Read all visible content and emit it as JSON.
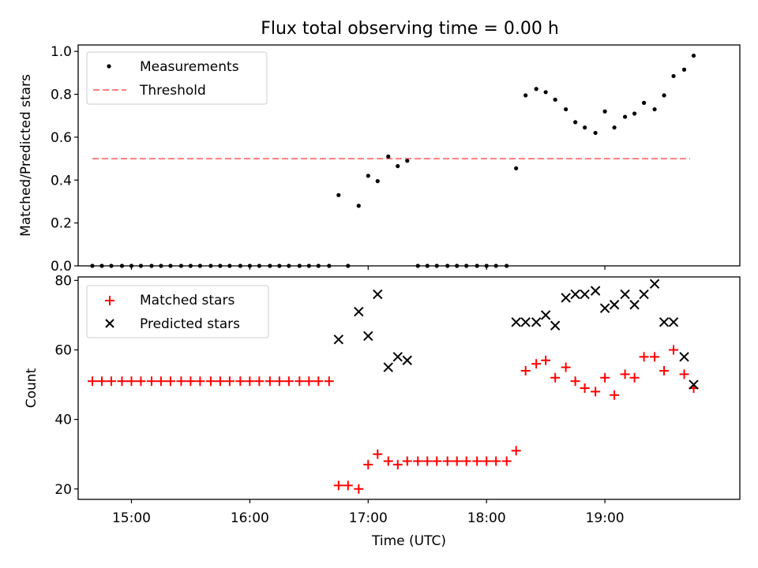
{
  "title": "Flux total observing time = 0.00 h",
  "colors": {
    "measurement": "#000000",
    "threshold": "#ff7f7f",
    "matched": "#ff0000",
    "predicted": "#000000"
  },
  "chart_data": [
    {
      "type": "scatter",
      "panel": "top",
      "ylabel": "Matched/Predicted stars",
      "xlim": [
        14.55,
        20.14
      ],
      "ylim": [
        0,
        1.03
      ],
      "yticks": [
        "0.0",
        "0.2",
        "0.4",
        "0.6",
        "0.8",
        "1.0"
      ],
      "ytick_values": [
        0,
        0.2,
        0.4,
        0.6,
        0.8,
        1.0
      ],
      "xtick_values": [
        15,
        16,
        17,
        18,
        19
      ],
      "threshold": {
        "name": "Threshold",
        "value": 0.5,
        "x_range": [
          14.67,
          19.72
        ]
      },
      "legend": [
        "Measurements",
        "Threshold"
      ],
      "series": [
        {
          "name": "Measurements",
          "x": [
            14.67,
            14.75,
            14.83,
            14.92,
            15.0,
            15.08,
            15.17,
            15.25,
            15.33,
            15.42,
            15.5,
            15.58,
            15.67,
            15.75,
            15.83,
            15.92,
            16.0,
            16.08,
            16.17,
            16.25,
            16.33,
            16.42,
            16.5,
            16.58,
            16.67,
            16.75,
            16.83,
            16.92,
            17.0,
            17.08,
            17.17,
            17.25,
            17.33,
            17.42,
            17.5,
            17.58,
            17.67,
            17.75,
            17.83,
            17.92,
            18.0,
            18.08,
            18.17,
            18.25,
            18.33,
            18.42,
            18.5,
            18.58,
            18.67,
            18.75,
            18.83,
            18.92,
            19.0,
            19.08,
            19.17,
            19.25,
            19.33,
            19.42,
            19.5,
            19.58,
            19.67,
            19.75
          ],
          "y": [
            0,
            0,
            0,
            0,
            0,
            0,
            0,
            0,
            0,
            0,
            0,
            0,
            0,
            0,
            0,
            0,
            0,
            0,
            0,
            0,
            0,
            0,
            0,
            0,
            0,
            0.33,
            0,
            0.28,
            0.42,
            0.395,
            0.51,
            0.465,
            0.49,
            0,
            0,
            0,
            0,
            0,
            0,
            0,
            0,
            0,
            0,
            0.455,
            0.795,
            0.825,
            0.81,
            0.775,
            0.73,
            0.67,
            0.645,
            0.62,
            0.72,
            0.645,
            0.695,
            0.71,
            0.76,
            0.73,
            0.795,
            0.885,
            0.915,
            0.98
          ]
        }
      ]
    },
    {
      "type": "scatter",
      "panel": "bottom",
      "ylabel": "Count",
      "xlabel": "Time (UTC)",
      "xlim": [
        14.55,
        20.14
      ],
      "ylim": [
        17,
        81
      ],
      "yticks": [
        "20",
        "40",
        "60",
        "80"
      ],
      "ytick_values": [
        20,
        40,
        60,
        80
      ],
      "xticks": [
        "15:00",
        "16:00",
        "17:00",
        "18:00",
        "19:00"
      ],
      "xtick_values": [
        15,
        16,
        17,
        18,
        19
      ],
      "legend": [
        "Matched stars",
        "Predicted stars"
      ],
      "series": [
        {
          "name": "Matched stars",
          "marker": "plus",
          "x": [
            14.67,
            14.75,
            14.83,
            14.92,
            15.0,
            15.08,
            15.17,
            15.25,
            15.33,
            15.42,
            15.5,
            15.58,
            15.67,
            15.75,
            15.83,
            15.92,
            16.0,
            16.08,
            16.17,
            16.25,
            16.33,
            16.42,
            16.5,
            16.58,
            16.67,
            16.75,
            16.83,
            16.92,
            17.0,
            17.08,
            17.17,
            17.25,
            17.33,
            17.42,
            17.5,
            17.58,
            17.67,
            17.75,
            17.83,
            17.92,
            18.0,
            18.08,
            18.17,
            18.25,
            18.33,
            18.42,
            18.5,
            18.58,
            18.67,
            18.75,
            18.83,
            18.92,
            19.0,
            19.08,
            19.17,
            19.25,
            19.33,
            19.42,
            19.5,
            19.58,
            19.67,
            19.75
          ],
          "y": [
            51,
            51,
            51,
            51,
            51,
            51,
            51,
            51,
            51,
            51,
            51,
            51,
            51,
            51,
            51,
            51,
            51,
            51,
            51,
            51,
            51,
            51,
            51,
            51,
            51,
            21,
            21,
            20,
            27,
            30,
            28,
            27,
            28,
            28,
            28,
            28,
            28,
            28,
            28,
            28,
            28,
            28,
            28,
            31,
            54,
            56,
            57,
            52,
            55,
            51,
            49,
            48,
            52,
            47,
            53,
            52,
            58,
            58,
            54,
            60,
            53,
            49
          ]
        },
        {
          "name": "Predicted stars",
          "marker": "x",
          "x": [
            16.75,
            16.92,
            17.0,
            17.08,
            17.17,
            17.25,
            17.33,
            18.25,
            18.33,
            18.42,
            18.5,
            18.58,
            18.67,
            18.75,
            18.83,
            18.92,
            19.0,
            19.08,
            19.17,
            19.25,
            19.33,
            19.42,
            19.5,
            19.58,
            19.67,
            19.75
          ],
          "y": [
            63,
            71,
            64,
            76,
            55,
            58,
            57,
            68,
            68,
            68,
            70,
            67,
            75,
            76,
            76,
            77,
            72,
            73,
            76,
            73,
            76,
            79,
            68,
            68,
            58,
            50
          ]
        }
      ]
    }
  ]
}
